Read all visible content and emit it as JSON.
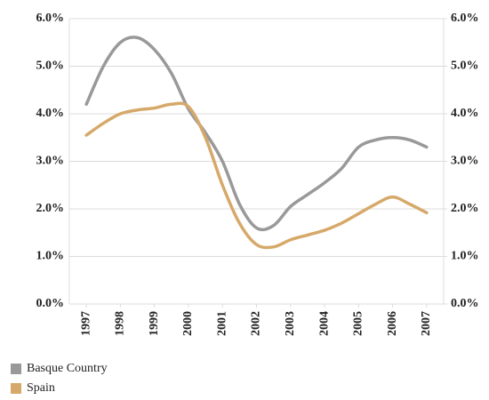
{
  "chart_data": {
    "type": "line",
    "x": [
      1997,
      1997.5,
      1998,
      1998.5,
      1999,
      1999.5,
      2000,
      2000.5,
      2001,
      2001.5,
      2002,
      2002.5,
      2003,
      2003.5,
      2004,
      2004.5,
      2005,
      2005.5,
      2006,
      2006.5,
      2007
    ],
    "series": [
      {
        "name": "Basque Country",
        "color": "#999999",
        "values": [
          4.2,
          5.0,
          5.5,
          5.6,
          5.35,
          4.85,
          4.1,
          3.6,
          3.0,
          2.1,
          1.6,
          1.65,
          2.05,
          2.3,
          2.55,
          2.85,
          3.3,
          3.45,
          3.5,
          3.45,
          3.3
        ]
      },
      {
        "name": "Spain",
        "color": "#d6a96a",
        "values": [
          3.55,
          3.8,
          4.0,
          4.08,
          4.12,
          4.2,
          4.15,
          3.5,
          2.5,
          1.7,
          1.25,
          1.2,
          1.35,
          1.45,
          1.55,
          1.7,
          1.9,
          2.1,
          2.25,
          2.1,
          1.92
        ]
      }
    ],
    "xlim": [
      1996.5,
      2007.5
    ],
    "xticks": [
      1997,
      1998,
      1999,
      2000,
      2001,
      2002,
      2003,
      2004,
      2005,
      2006,
      2007
    ],
    "ylim": [
      0,
      6
    ],
    "yticks": [
      {
        "value": 0,
        "label": "0.0%"
      },
      {
        "value": 1,
        "label": "1.0%"
      },
      {
        "value": 2,
        "label": "2.0%"
      },
      {
        "value": 3,
        "label": "3.0%"
      },
      {
        "value": 4,
        "label": "4.0%"
      },
      {
        "value": 5,
        "label": "5.0%"
      },
      {
        "value": 6,
        "label": "6.0%"
      }
    ],
    "y2lim": [
      0,
      6
    ],
    "y2ticks": [
      {
        "value": 0,
        "label": "0.0%"
      },
      {
        "value": 1,
        "label": "1.0%"
      },
      {
        "value": 2,
        "label": "2.0%"
      },
      {
        "value": 3,
        "label": "3.0%"
      },
      {
        "value": 4,
        "label": "4.0%"
      },
      {
        "value": 5,
        "label": "5.0%"
      },
      {
        "value": 6,
        "label": "6.0%"
      }
    ],
    "grid": true
  }
}
